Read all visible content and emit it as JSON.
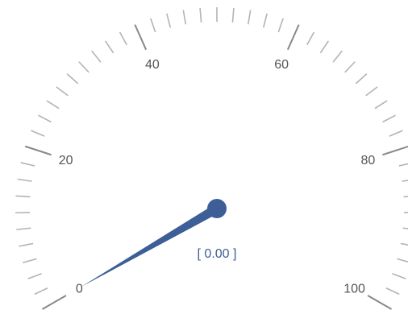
{
  "chart_data": {
    "type": "gauge",
    "min": 0,
    "max": 100,
    "value": 0.0,
    "value_label": "[ 0.00 ]",
    "major_ticks": [
      0,
      20,
      40,
      60,
      80,
      100
    ],
    "tick_labels": [
      "0",
      "20",
      "40",
      "60",
      "80",
      "100"
    ],
    "minor_ticks_per_major": 10,
    "colors": {
      "needle": "#3d5e96",
      "value_text": "#3d5e96",
      "tick_label": "#555555",
      "major_tick": "#888888",
      "minor_tick": "#b3b3b3"
    }
  }
}
